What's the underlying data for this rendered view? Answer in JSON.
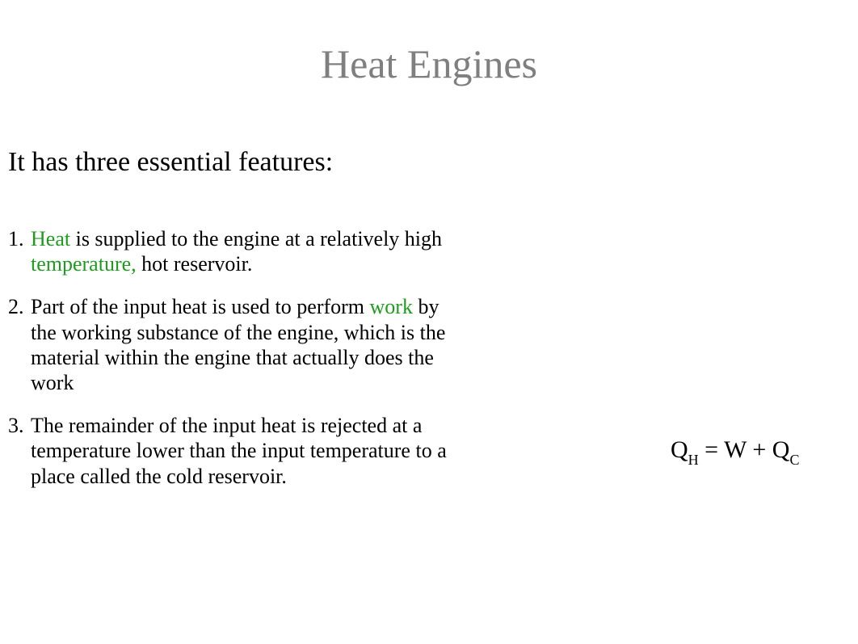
{
  "title": "Heat Engines",
  "title_color": "#7f7f7f",
  "title_fontsize": 50,
  "intro": "It has three essential features:",
  "intro_fontsize": 34,
  "body_fontsize": 26,
  "highlight_color": "#1f9b1f",
  "background_color": "#ffffff",
  "text_color": "#000000",
  "items": [
    {
      "num": "1.",
      "a": "Heat",
      "b": " is supplied to the engine at a relatively high ",
      "c": "temperature,",
      "d": "  hot reservoir."
    },
    {
      "num": "2.",
      "a": "Part of the input heat is used to perform ",
      "b": "work",
      "c": " by the working substance of the engine, which is the material within the engine that actually does the work"
    },
    {
      "num": "3.",
      "a": "The remainder of the input heat is rejected at a temperature lower than the input temperature to a place called the cold reservoir."
    }
  ],
  "equation": {
    "q": "Q",
    "sub_h": "H",
    "eq": " = ",
    "w": "W",
    "plus": " + ",
    "sub_c": "C",
    "fontsize": 30,
    "sub_fontsize": 18
  }
}
